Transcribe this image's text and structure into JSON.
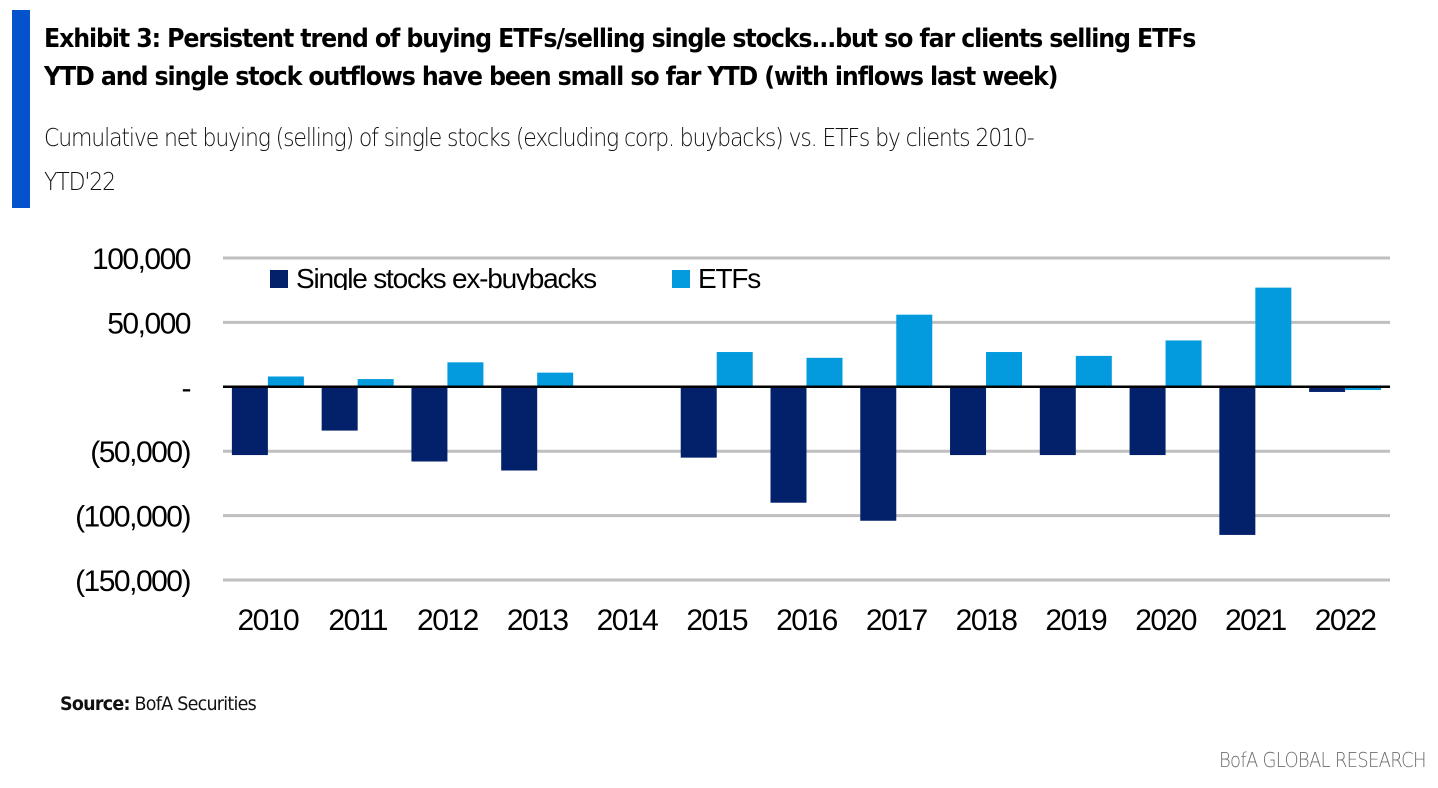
{
  "header": {
    "title_line1": "Exhibit 3: Persistent trend of buying ETFs/selling single stocks...but so far clients selling ETFs",
    "title_line2": "YTD and single stock outflows have been small so far YTD (with inflows last week)",
    "subtitle_line1": "Cumulative net buying (selling) of single stocks (excluding corp. buybacks) vs. ETFs by clients 2010-",
    "subtitle_line2": "YTD'22",
    "accent_color": "#0553CC"
  },
  "footer": {
    "source_label": "Source:",
    "source_value": " BofA Securities",
    "brand": "BofA GLOBAL RESEARCH"
  },
  "chart_data": {
    "type": "bar",
    "title": "Cumulative net buying (selling) of single stocks (excluding corp. buybacks) vs. ETFs by clients 2010-YTD'22",
    "xlabel": "",
    "ylabel": "",
    "categories": [
      "2010",
      "2011",
      "2012",
      "2013",
      "2014",
      "2015",
      "2016",
      "2017",
      "2018",
      "2019",
      "2020",
      "2021",
      "2022"
    ],
    "series": [
      {
        "name": "Single stocks ex-buybacks",
        "color": "#03216A",
        "values": [
          -53000,
          -34000,
          -58000,
          -65000,
          0,
          -55000,
          -90000,
          -104000,
          -53000,
          -53000,
          -53000,
          -115000,
          -4000
        ]
      },
      {
        "name": "ETFs",
        "color": "#039BDD",
        "values": [
          8000,
          6000,
          19000,
          11000,
          0,
          27000,
          22500,
          56000,
          27000,
          24000,
          36000,
          77000,
          -2500
        ]
      }
    ],
    "ylim": [
      -150000,
      100000
    ],
    "yticks": [
      100000,
      50000,
      0,
      -50000,
      -100000,
      -150000
    ],
    "ytick_labels": [
      "100,000",
      "50,000",
      "-",
      "(50,000)",
      "(100,000)",
      "(150,000)"
    ],
    "legend_labels": [
      "Single stocks ex-buybacks",
      "ETFs"
    ],
    "legend_position": "top-left",
    "grid": true,
    "grid_color": "#BFBFBF"
  }
}
